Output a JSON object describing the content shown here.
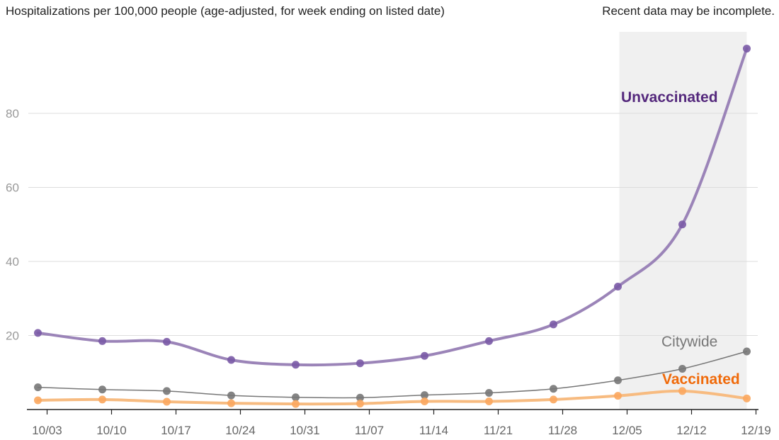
{
  "chart_data": {
    "type": "line",
    "subtitle": "Hospitalizations per 100,000 people (age-adjusted, for week ending on listed date)",
    "note": "Recent data may be incomplete.",
    "x": [
      "10/03",
      "10/10",
      "10/17",
      "10/24",
      "10/31",
      "11/07",
      "11/14",
      "11/21",
      "11/28",
      "12/05",
      "12/12",
      "12/19"
    ],
    "xtick_labels": [
      "10/03",
      "10/10",
      "10/17",
      "10/24",
      "10/31",
      "11/07",
      "11/14",
      "11/21",
      "11/28",
      "12/05",
      "12/12",
      "12/19"
    ],
    "y_ticks": [
      20,
      40,
      60,
      80
    ],
    "ylim": [
      0,
      102
    ],
    "grid": true,
    "shaded_region": {
      "from": "12/05",
      "to": "12/19",
      "color": "#f0f0f0"
    },
    "series": [
      {
        "name": "Unvaccinated",
        "color": "#9b84b8",
        "marker_color": "#7a5aa6",
        "label_color": "#54287c",
        "x": [
          "10/02",
          "10/09",
          "10/16",
          "10/23",
          "10/30",
          "11/06",
          "11/13",
          "11/20",
          "11/27",
          "12/04",
          "12/11",
          "12/18"
        ],
        "values": [
          20.7,
          18.5,
          18.3,
          13.4,
          12.1,
          12.5,
          14.5,
          18.5,
          23.0,
          33.2,
          50.0,
          97.5
        ]
      },
      {
        "name": "Citywide",
        "color": "#777777",
        "marker_color": "#777777",
        "label_color": "#777777",
        "x": [
          "10/02",
          "10/09",
          "10/16",
          "10/23",
          "10/30",
          "11/06",
          "11/13",
          "11/20",
          "11/27",
          "12/04",
          "12/11",
          "12/18"
        ],
        "values": [
          6.0,
          5.4,
          5.0,
          3.8,
          3.3,
          3.2,
          3.9,
          4.5,
          5.6,
          7.9,
          11.0,
          15.7
        ]
      },
      {
        "name": "Vaccinated",
        "color": "#f7bb80",
        "marker_color": "#fba75e",
        "label_color": "#f06a0a",
        "x": [
          "10/02",
          "10/09",
          "10/16",
          "10/23",
          "10/30",
          "11/06",
          "11/13",
          "11/20",
          "11/27",
          "12/04",
          "12/11",
          "12/18"
        ],
        "values": [
          2.5,
          2.7,
          2.1,
          1.7,
          1.5,
          1.6,
          2.2,
          2.2,
          2.7,
          3.7,
          5.0,
          3.0
        ]
      }
    ]
  }
}
